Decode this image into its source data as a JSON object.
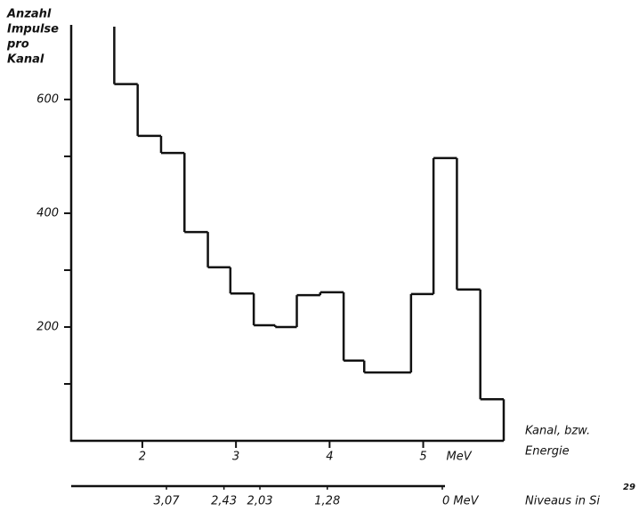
{
  "chart_data": {
    "type": "histogram",
    "y_label_lines": [
      "Anzahl",
      "Impulse",
      "pro",
      "Kanal"
    ],
    "x_label_lines": [
      "Kanal, bzw.",
      "Energie"
    ],
    "x_unit": "MeV",
    "bins": [
      1.7,
      1.95,
      2.2,
      2.45,
      2.7,
      2.94,
      3.19,
      3.42,
      3.65,
      3.9,
      4.15,
      4.37,
      4.87,
      5.11,
      5.36,
      5.61,
      5.86
    ],
    "counts": [
      627,
      536,
      506,
      367,
      305,
      259,
      203,
      200,
      256,
      261,
      141,
      120,
      258,
      497,
      266,
      73
    ],
    "color": "#111111",
    "xlim": [
      1.24,
      5.86
    ],
    "xticks": [
      2,
      3,
      4,
      5
    ],
    "ylim": [
      0,
      728
    ],
    "yticks": [
      200,
      400,
      600
    ],
    "minor_yticks": [
      100,
      300,
      500
    ],
    "x2_label": "Niveaus in Si",
    "x2_label_superscript": "29",
    "x2lim": [
      4.13,
      0
    ],
    "x2ticks": [
      {
        "value": 3.07,
        "label": "3,07"
      },
      {
        "value": 2.43,
        "label": "2,43"
      },
      {
        "value": 2.03,
        "label": "2,03"
      },
      {
        "value": 1.28,
        "label": "1,28"
      },
      {
        "value": 0,
        "label": "0 MeV"
      }
    ]
  }
}
